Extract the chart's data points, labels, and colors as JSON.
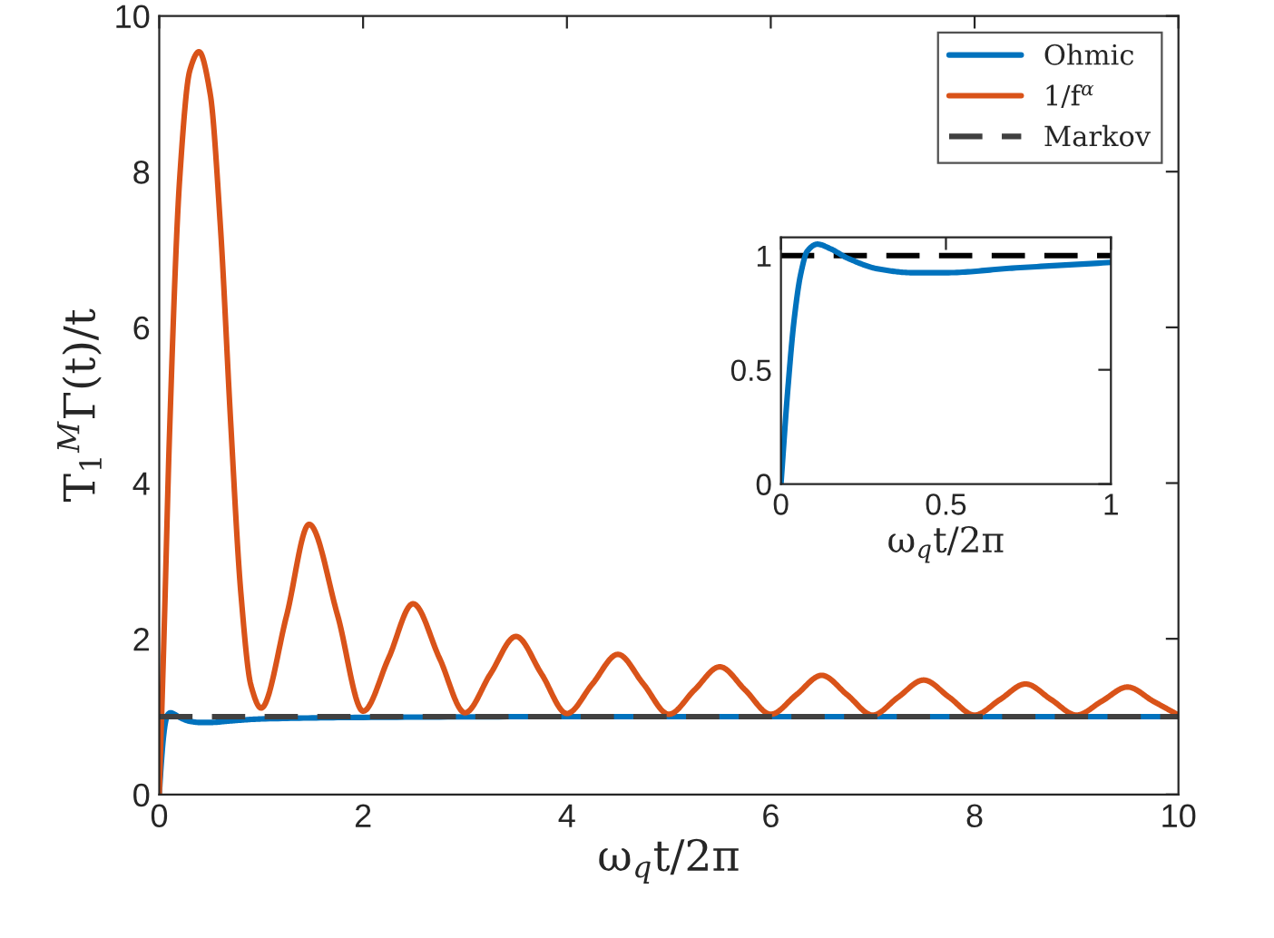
{
  "chart_data": [
    {
      "type": "line",
      "xlabel": "ω$_{q}$t/2π",
      "ylabel": "T$_{1}$$^{M}$Γ(t)/t",
      "xlim": [
        0,
        10
      ],
      "ylim": [
        0,
        10
      ],
      "xticks": [
        0,
        2,
        4,
        6,
        8,
        10
      ],
      "yticks": [
        0,
        2,
        4,
        6,
        8,
        10
      ],
      "legend": "top right",
      "series": [
        {
          "name": "Ohmic",
          "color": "#0072bd",
          "line_style": "solid",
          "x": [
            0,
            0.02,
            0.04,
            0.06,
            0.08,
            0.11,
            0.15,
            0.2,
            0.3,
            0.4,
            0.5,
            0.7,
            1.0,
            2,
            4,
            10
          ],
          "values": [
            0,
            0.4,
            0.72,
            0.92,
            1.02,
            1.05,
            1.03,
            0.99,
            0.94,
            0.925,
            0.925,
            0.945,
            0.97,
            0.99,
            1.0,
            1.0
          ]
        },
        {
          "name": "1/f$^{α}$",
          "color": "#d95319",
          "line_style": "solid",
          "x": [
            0,
            0.05,
            0.1,
            0.2,
            0.3,
            0.39,
            0.5,
            0.6,
            0.7,
            0.8,
            0.9,
            1.0,
            1.25,
            1.47,
            1.75,
            2.0,
            2.25,
            2.49,
            2.75,
            3.0,
            3.25,
            3.5,
            3.75,
            4.0,
            4.25,
            4.5,
            4.75,
            5.0,
            5.25,
            5.5,
            5.75,
            6.0,
            6.25,
            6.5,
            6.75,
            7.0,
            7.25,
            7.5,
            7.75,
            8.0,
            8.25,
            8.5,
            8.75,
            9.0,
            9.25,
            9.5,
            9.75,
            10.0
          ],
          "values": [
            0,
            2.2,
            4.6,
            7.9,
            9.3,
            9.54,
            9.0,
            7.3,
            4.8,
            2.6,
            1.4,
            1.11,
            2.3,
            3.47,
            2.3,
            1.07,
            1.75,
            2.45,
            1.75,
            1.05,
            1.55,
            2.03,
            1.55,
            1.04,
            1.42,
            1.8,
            1.42,
            1.03,
            1.34,
            1.64,
            1.34,
            1.03,
            1.28,
            1.53,
            1.28,
            1.02,
            1.25,
            1.47,
            1.25,
            1.02,
            1.22,
            1.42,
            1.22,
            1.02,
            1.2,
            1.38,
            1.2,
            1.02
          ]
        },
        {
          "name": "Markov",
          "color": "#404040",
          "line_style": "dashed",
          "x": [
            0,
            10
          ],
          "values": [
            1,
            1
          ]
        }
      ]
    },
    {
      "type": "line",
      "xlabel": "ω$_{q}$t/2π",
      "xlim": [
        0,
        1
      ],
      "ylim": [
        0,
        1.08
      ],
      "xticks": [
        0,
        0.5,
        1
      ],
      "yticks": [
        0,
        0.5,
        1
      ],
      "series": [
        {
          "color": "#000000",
          "line_style": "dashed",
          "x": [
            0,
            1
          ],
          "values": [
            1,
            1
          ]
        },
        {
          "color": "#0072bd",
          "line_style": "solid",
          "x": [
            0,
            0.02,
            0.04,
            0.06,
            0.08,
            0.11,
            0.15,
            0.2,
            0.3,
            0.4,
            0.5,
            0.7,
            1.0
          ],
          "values": [
            0,
            0.4,
            0.72,
            0.92,
            1.02,
            1.05,
            1.03,
            0.99,
            0.94,
            0.925,
            0.925,
            0.945,
            0.97
          ]
        }
      ]
    }
  ]
}
